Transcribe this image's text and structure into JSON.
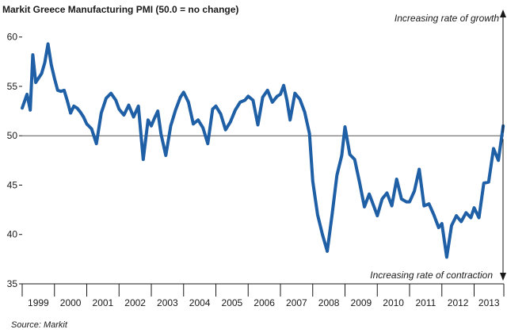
{
  "chart_data": {
    "type": "line",
    "title": "Markit Greece Manufacturing PMI (50.0 = no change)",
    "note_top": "Increasing rate of growth",
    "note_bottom": "Increasing rate of contraction",
    "source": "Source: Markit",
    "xlabel": "",
    "ylabel": "",
    "ylim": [
      35,
      61.5
    ],
    "xlim": [
      1999.0,
      2013.92
    ],
    "y_ticks": [
      35,
      40,
      45,
      50,
      55,
      60
    ],
    "x_tick_labels": [
      "1999",
      "2000",
      "2001",
      "2002",
      "2003",
      "2004",
      "2005",
      "2006",
      "2007",
      "2008",
      "2009",
      "2010",
      "2011",
      "2012",
      "2013"
    ],
    "reference_line": 50,
    "grid": false,
    "line_color": "#1f5fa5",
    "series": [
      {
        "x": [
          1999.0,
          1999.15,
          1999.25,
          1999.33,
          1999.42,
          1999.5,
          1999.6,
          1999.7,
          1999.8,
          1999.9,
          2000.0,
          2000.1,
          2000.2,
          2000.3,
          2000.4,
          2000.5,
          2000.6,
          2000.7,
          2000.8,
          2000.9,
          2001.0,
          2001.15,
          2001.3,
          2001.45,
          2001.6,
          2001.75,
          2001.9,
          2002.0,
          2002.15,
          2002.3,
          2002.45,
          2002.6,
          2002.75,
          2002.9,
          2003.0,
          2003.1,
          2003.2,
          2003.3,
          2003.45,
          2003.6,
          2003.75,
          2003.9,
          2004.0,
          2004.15,
          2004.3,
          2004.45,
          2004.6,
          2004.75,
          2004.9,
          2005.0,
          2005.15,
          2005.3,
          2005.45,
          2005.6,
          2005.75,
          2005.9,
          2006.0,
          2006.15,
          2006.3,
          2006.45,
          2006.6,
          2006.75,
          2006.9,
          2007.0,
          2007.1,
          2007.2,
          2007.3,
          2007.45,
          2007.6,
          2007.75,
          2007.9,
          2008.0,
          2008.15,
          2008.3,
          2008.45,
          2008.6,
          2008.75,
          2008.9,
          2009.0,
          2009.15,
          2009.3,
          2009.45,
          2009.6,
          2009.75,
          2009.9,
          2010.0,
          2010.15,
          2010.3,
          2010.45,
          2010.6,
          2010.75,
          2010.9,
          2011.0,
          2011.15,
          2011.3,
          2011.45,
          2011.6,
          2011.75,
          2011.9,
          2012.0,
          2012.15,
          2012.3,
          2012.45,
          2012.6,
          2012.75,
          2012.9,
          2013.0,
          2013.15,
          2013.3,
          2013.45,
          2013.6,
          2013.75,
          2013.9
        ],
        "values": [
          52.8,
          54.2,
          52.6,
          58.2,
          55.4,
          55.8,
          56.3,
          57.4,
          59.3,
          57.2,
          55.8,
          54.6,
          54.5,
          54.6,
          53.5,
          52.3,
          53.0,
          52.8,
          52.4,
          51.9,
          51.2,
          50.7,
          49.2,
          52.3,
          53.8,
          54.3,
          53.6,
          52.7,
          52.1,
          53.1,
          51.9,
          53.0,
          47.6,
          51.6,
          51.0,
          51.8,
          52.5,
          50.2,
          48.0,
          51.0,
          52.6,
          53.9,
          54.4,
          53.4,
          51.2,
          51.6,
          50.8,
          49.2,
          52.7,
          53.0,
          52.2,
          50.6,
          51.4,
          52.6,
          53.4,
          53.6,
          54.0,
          53.6,
          51.1,
          53.9,
          54.6,
          53.4,
          54.0,
          54.2,
          55.1,
          53.6,
          51.6,
          54.3,
          53.7,
          52.4,
          50.2,
          45.4,
          42.0,
          40.0,
          38.3,
          42.0,
          46.0,
          48.0,
          50.9,
          48.1,
          47.6,
          45.3,
          42.8,
          44.1,
          42.8,
          41.9,
          43.6,
          44.2,
          42.9,
          45.6,
          43.6,
          43.3,
          43.3,
          44.4,
          46.6,
          42.9,
          43.1,
          42.0,
          40.7,
          41.1,
          37.7,
          40.9,
          41.9,
          41.3,
          42.2,
          41.7,
          42.7,
          41.7,
          45.2,
          45.3,
          48.7,
          47.5,
          51.0
        ]
      }
    ]
  }
}
